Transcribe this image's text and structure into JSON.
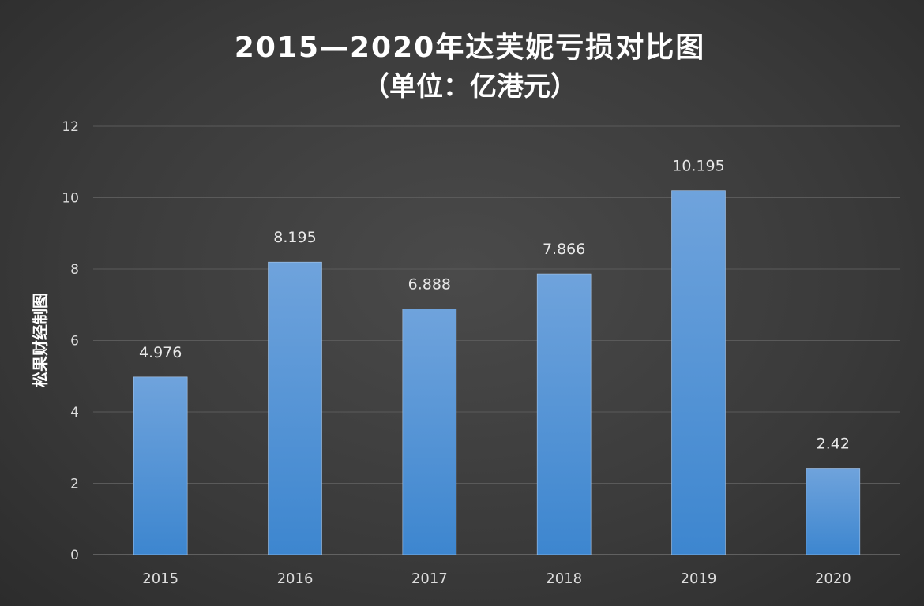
{
  "chart_data": {
    "type": "bar",
    "title_line1": "2015—2020年达芙妮亏损对比图",
    "title_line2": "（单位：亿港元）",
    "categories": [
      "2015",
      "2016",
      "2017",
      "2018",
      "2019",
      "2020"
    ],
    "values": [
      4.976,
      8.195,
      6.888,
      7.866,
      10.195,
      2.42
    ],
    "data_labels": [
      "4.976",
      "8.195",
      "6.888",
      "7.866",
      "10.195",
      "2.42"
    ],
    "ylabel": "松果财经制图",
    "xlabel": "",
    "ylim": [
      0,
      12
    ],
    "yticks": [
      0,
      2,
      4,
      6,
      8,
      10,
      12
    ],
    "grid": true,
    "bar_color_top": "#6fa3dc",
    "bar_color_bottom": "#3d86cf"
  }
}
